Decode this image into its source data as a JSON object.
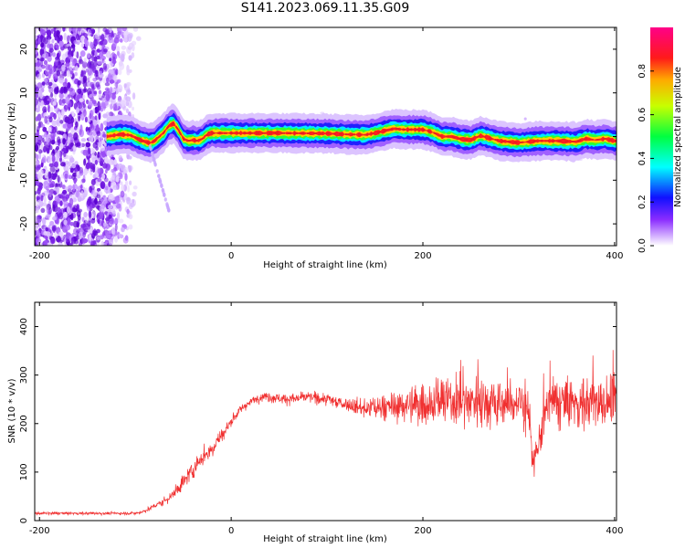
{
  "title": "S141.2023.069.11.35.G09",
  "colors": {
    "snr_line": "#f03030",
    "ridge_core": "#e82020",
    "scatter_purple": "#7a22e6"
  },
  "chart_data": [
    {
      "type": "heatmap",
      "xlabel": "Height of straight line (km)",
      "ylabel": "Frequency (Hz)",
      "xlim": [
        -205,
        402
      ],
      "ylim": [
        -25,
        25
      ],
      "x_ticks": [
        -200,
        0,
        200,
        400
      ],
      "y_ticks": [
        -20,
        -10,
        0,
        10,
        20
      ],
      "colorbar": {
        "label": "Normalized spectral amplitude",
        "range": [
          0,
          1
        ],
        "ticks": [
          "0.0",
          "0.2",
          "0.4",
          "0.6",
          "0.8"
        ],
        "colormap": [
          "#ffffff",
          "#c090ff",
          "#6a00ff",
          "#0000ff",
          "#00ffff",
          "#00ff00",
          "#ffff00",
          "#ff0000",
          "#ff00a0"
        ]
      },
      "ridge": {
        "x": [
          -130,
          -115,
          -105,
          -95,
          -85,
          -80,
          -75,
          -70,
          -65,
          -60,
          -55,
          -50,
          -45,
          -40,
          -35,
          -30,
          -25,
          -20,
          0,
          50,
          100,
          120,
          140,
          150,
          160,
          170,
          180,
          200,
          210,
          220,
          230,
          240,
          250,
          260,
          270,
          280,
          300,
          320,
          340,
          360,
          370,
          380,
          390,
          400
        ],
        "y": [
          0.0,
          0.5,
          0.3,
          -0.8,
          -1.5,
          -1.0,
          0.0,
          1.0,
          2.5,
          3.0,
          1.5,
          -0.5,
          -1.0,
          -0.8,
          -1.0,
          -0.5,
          0.5,
          0.8,
          0.8,
          0.8,
          0.7,
          0.5,
          0.4,
          0.8,
          1.3,
          1.8,
          1.6,
          1.6,
          1.0,
          0.0,
          0.0,
          -0.6,
          -0.8,
          0.2,
          -0.4,
          -1.0,
          -1.4,
          -1.0,
          -1.0,
          -1.2,
          -0.5,
          -0.8,
          -0.5,
          -1.0
        ]
      },
      "noise_region_x": [
        -205,
        -110
      ]
    },
    {
      "type": "line",
      "xlabel": "Height of straight line (km)",
      "ylabel": "SNR (10 * v/v)",
      "xlim": [
        -205,
        402
      ],
      "ylim": [
        0,
        450
      ],
      "x_ticks": [
        -200,
        0,
        200,
        400
      ],
      "y_ticks": [
        0,
        100,
        200,
        300,
        400
      ],
      "series": [
        {
          "x": [
            -205,
            -150,
            -100,
            -90,
            -80,
            -70,
            -60,
            -50,
            -40,
            -30,
            -20,
            -10,
            0,
            10,
            20,
            30,
            40,
            60,
            80,
            100,
            120,
            140,
            160,
            180,
            200,
            220,
            240,
            260,
            280,
            300,
            310,
            315,
            320,
            330,
            340,
            360,
            380,
            400
          ],
          "y": [
            15,
            15,
            15,
            20,
            30,
            40,
            55,
            80,
            105,
            130,
            150,
            175,
            205,
            230,
            245,
            255,
            255,
            250,
            255,
            250,
            240,
            230,
            235,
            235,
            240,
            245,
            245,
            250,
            240,
            245,
            235,
            110,
            150,
            240,
            245,
            240,
            245,
            240
          ],
          "spread": [
            4,
            4,
            4,
            5,
            8,
            12,
            15,
            20,
            25,
            25,
            25,
            20,
            15,
            12,
            10,
            12,
            14,
            14,
            14,
            16,
            20,
            25,
            35,
            45,
            55,
            60,
            65,
            70,
            70,
            70,
            70,
            40,
            50,
            70,
            70,
            70,
            70,
            70
          ]
        }
      ]
    }
  ]
}
